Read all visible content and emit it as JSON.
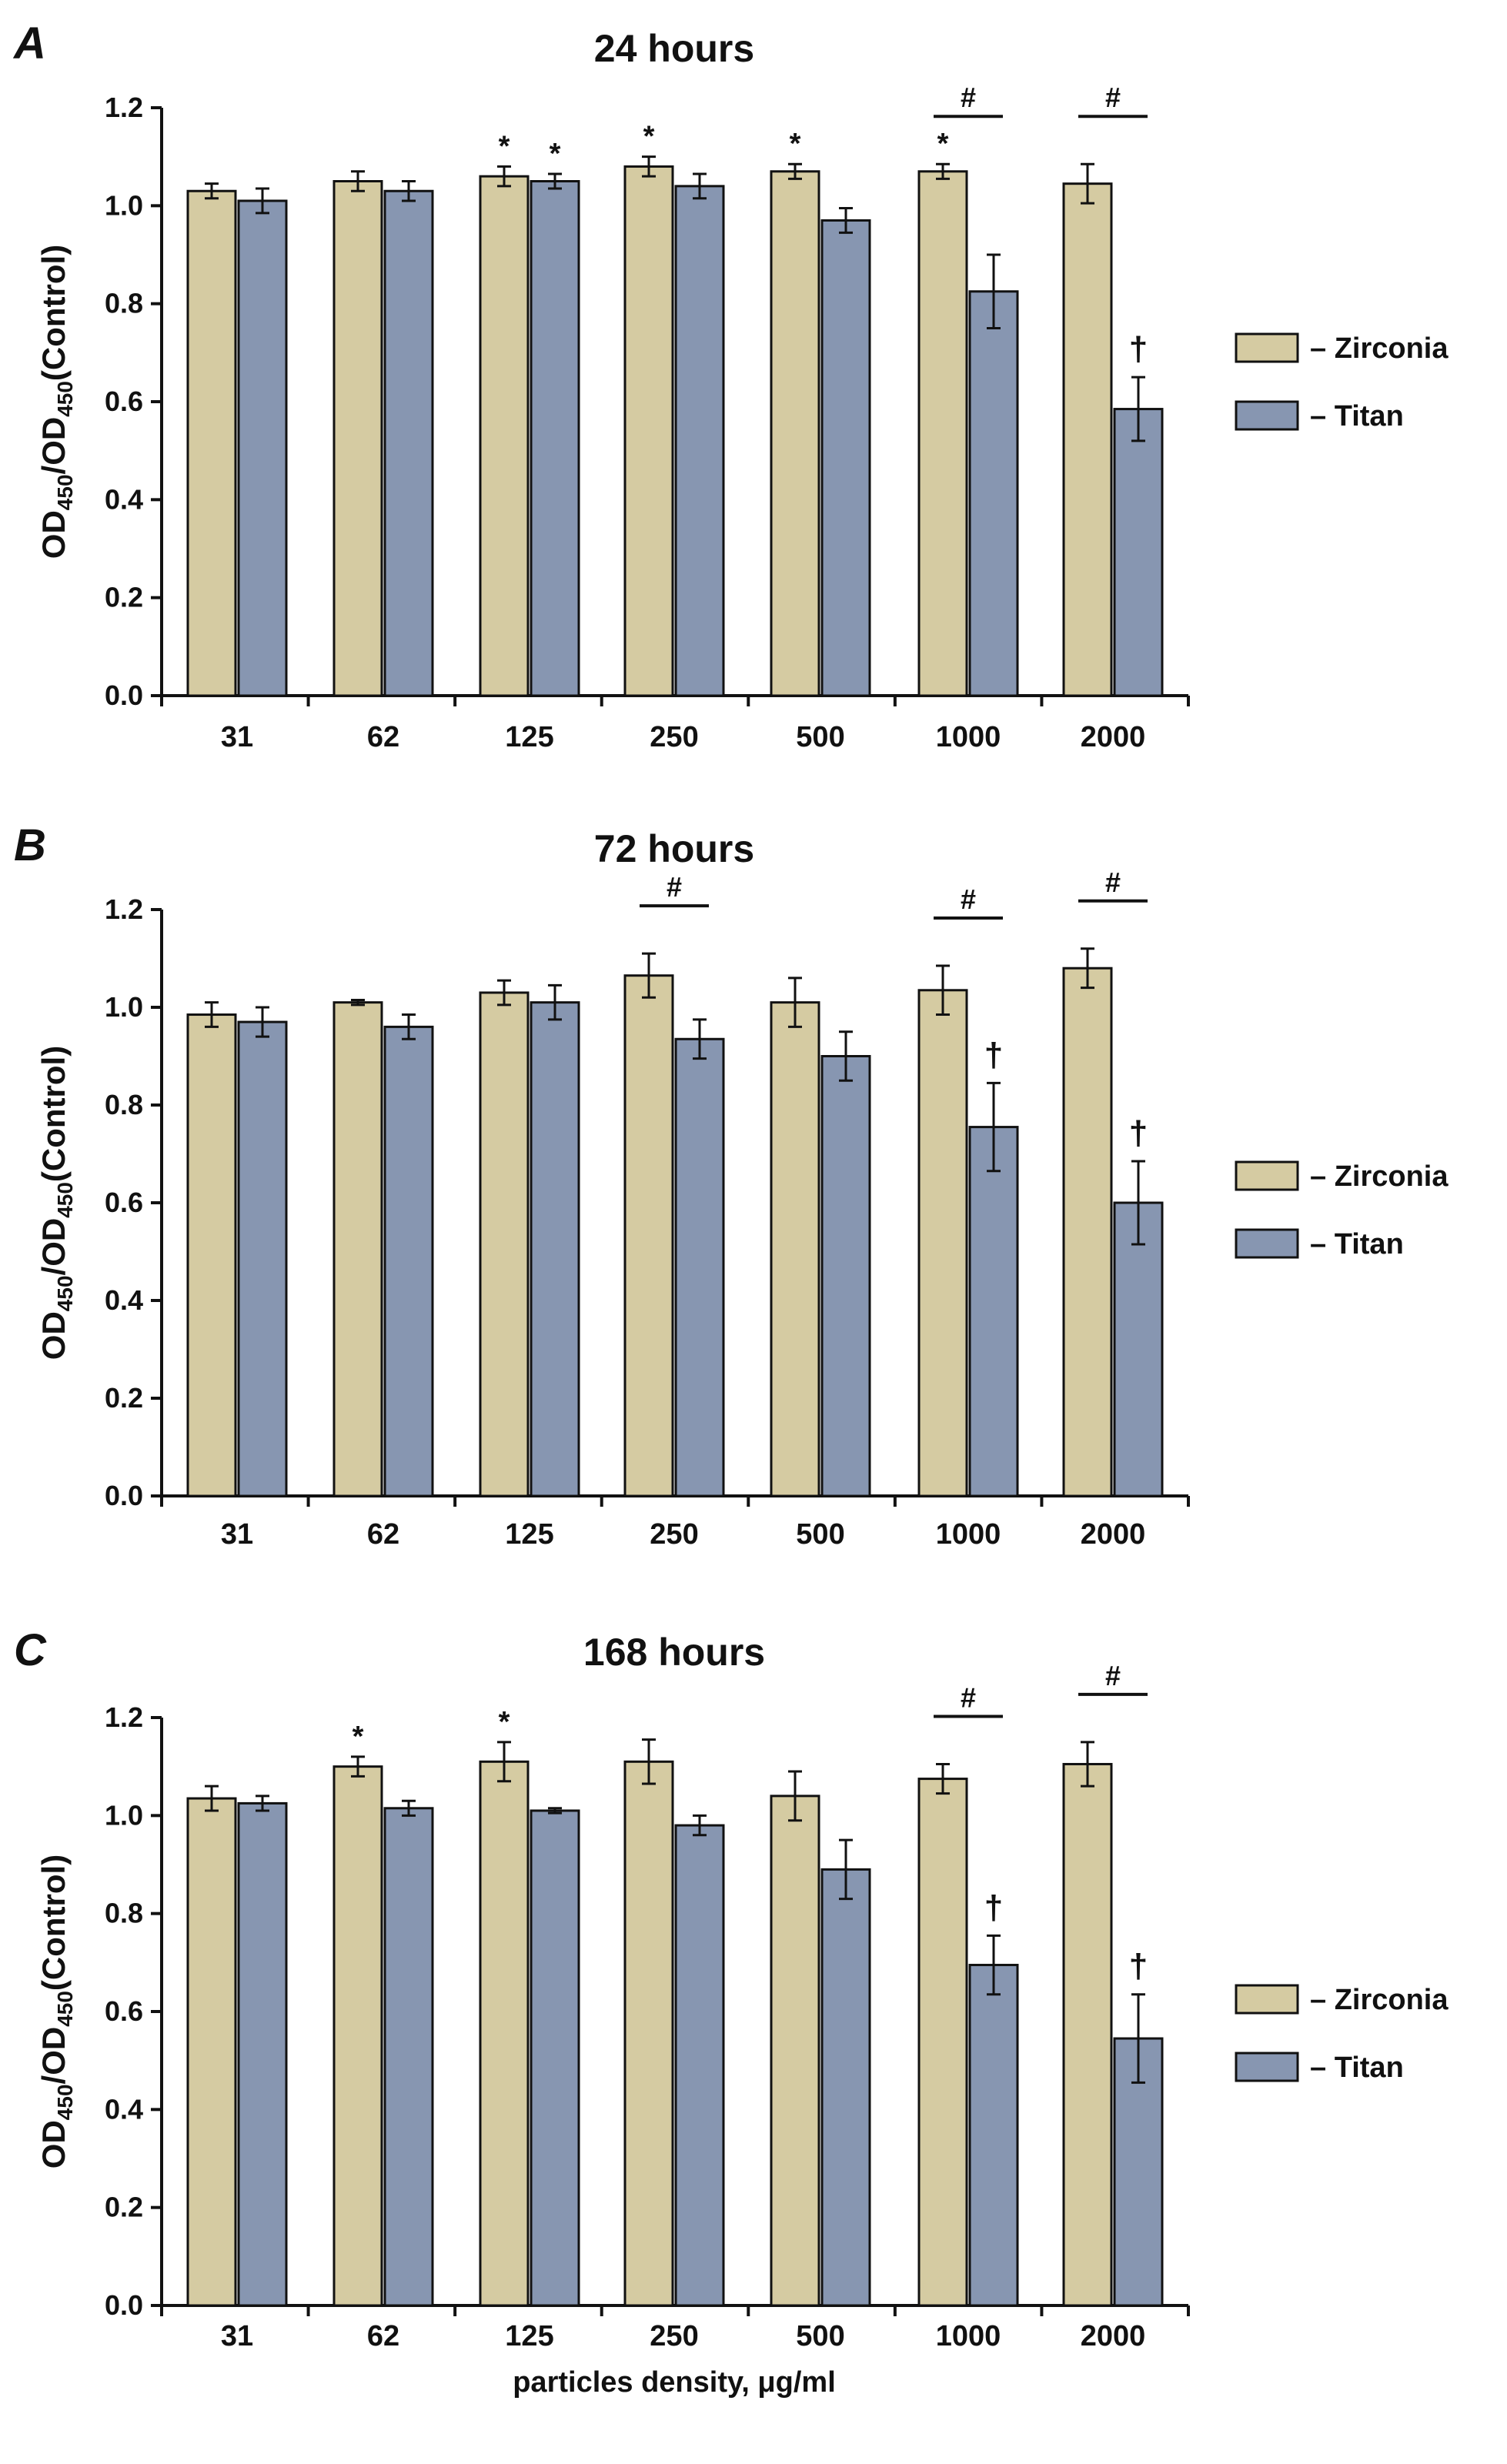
{
  "colors": {
    "zirconia": "#d5cba2",
    "titan": "#8796b1",
    "stroke": "#111111"
  },
  "chart_data": [
    {
      "type": "bar",
      "panel_label": "A",
      "title": "24 hours",
      "xlabel": "",
      "ylabel_main": "OD",
      "ylabel_sub": "450",
      "ylabel_slash": "/OD",
      "ylabel_sub2": "450",
      "ylabel_tail": "(Control)",
      "ylim": [
        0,
        1.2
      ],
      "yticks": [
        "0.0",
        "0.2",
        "0.4",
        "0.6",
        "0.8",
        "1.0",
        "1.2"
      ],
      "categories": [
        "31",
        "62",
        "125",
        "250",
        "500",
        "1000",
        "2000"
      ],
      "series": [
        {
          "name": "Zirconia",
          "legend": "– Zirconia",
          "values": [
            1.03,
            1.05,
            1.06,
            1.08,
            1.07,
            1.07,
            1.045
          ],
          "errors": [
            0.015,
            0.02,
            0.02,
            0.02,
            0.015,
            0.015,
            0.04
          ]
        },
        {
          "name": "Titan",
          "legend": "– Titan",
          "values": [
            1.01,
            1.03,
            1.05,
            1.04,
            0.97,
            0.825,
            0.585
          ],
          "errors": [
            0.025,
            0.02,
            0.015,
            0.025,
            0.025,
            0.075,
            0.065
          ]
        }
      ],
      "annotations": [
        {
          "text": "*",
          "series": 0,
          "index": 2
        },
        {
          "text": "*",
          "series": 1,
          "index": 2
        },
        {
          "text": "*",
          "series": 0,
          "index": 3
        },
        {
          "text": "*",
          "series": 0,
          "index": 4
        },
        {
          "text": "*",
          "series": 0,
          "index": 5
        },
        {
          "text": "†",
          "series": 1,
          "index": 6
        }
      ],
      "brackets": [
        {
          "text": "#",
          "index": 5
        },
        {
          "text": "#",
          "index": 6
        }
      ]
    },
    {
      "type": "bar",
      "panel_label": "B",
      "title": "72 hours",
      "xlabel": "",
      "ylabel_main": "OD",
      "ylabel_sub": "450",
      "ylabel_slash": "/OD",
      "ylabel_sub2": "450",
      "ylabel_tail": "(Control)",
      "ylim": [
        0,
        1.2
      ],
      "yticks": [
        "0.0",
        "0.2",
        "0.4",
        "0.6",
        "0.8",
        "1.0",
        "1.2"
      ],
      "categories": [
        "31",
        "62",
        "125",
        "250",
        "500",
        "1000",
        "2000"
      ],
      "series": [
        {
          "name": "Zirconia",
          "legend": "– Zirconia",
          "values": [
            0.985,
            1.01,
            1.03,
            1.065,
            1.01,
            1.035,
            1.08
          ],
          "errors": [
            0.025,
            0.005,
            0.025,
            0.045,
            0.05,
            0.05,
            0.04
          ]
        },
        {
          "name": "Titan",
          "legend": "– Titan",
          "values": [
            0.97,
            0.96,
            1.01,
            0.935,
            0.9,
            0.755,
            0.6
          ],
          "errors": [
            0.03,
            0.025,
            0.035,
            0.04,
            0.05,
            0.09,
            0.085
          ]
        }
      ],
      "annotations": [
        {
          "text": "†",
          "series": 1,
          "index": 5
        },
        {
          "text": "†",
          "series": 1,
          "index": 6
        }
      ],
      "brackets": [
        {
          "text": "#",
          "index": 3
        },
        {
          "text": "#",
          "index": 5
        },
        {
          "text": "#",
          "index": 6
        }
      ]
    },
    {
      "type": "bar",
      "panel_label": "C",
      "title": "168 hours",
      "xlabel": "particles density, μg/ml",
      "ylabel_main": "OD",
      "ylabel_sub": "450",
      "ylabel_slash": "/OD",
      "ylabel_sub2": "450",
      "ylabel_tail": "(Control)",
      "ylim": [
        0,
        1.2
      ],
      "yticks": [
        "0.0",
        "0.2",
        "0.4",
        "0.6",
        "0.8",
        "1.0",
        "1.2"
      ],
      "categories": [
        "31",
        "62",
        "125",
        "250",
        "500",
        "1000",
        "2000"
      ],
      "series": [
        {
          "name": "Zirconia",
          "legend": "– Zirconia",
          "values": [
            1.035,
            1.1,
            1.11,
            1.11,
            1.04,
            1.075,
            1.105
          ],
          "errors": [
            0.025,
            0.02,
            0.04,
            0.045,
            0.05,
            0.03,
            0.045
          ]
        },
        {
          "name": "Titan",
          "legend": "– Titan",
          "values": [
            1.025,
            1.015,
            1.01,
            0.98,
            0.89,
            0.695,
            0.545
          ],
          "errors": [
            0.015,
            0.015,
            0.005,
            0.02,
            0.06,
            0.06,
            0.09
          ]
        }
      ],
      "annotations": [
        {
          "text": "*",
          "series": 0,
          "index": 1
        },
        {
          "text": "*",
          "series": 0,
          "index": 2
        },
        {
          "text": "†",
          "series": 1,
          "index": 5
        },
        {
          "text": "†",
          "series": 1,
          "index": 6
        }
      ],
      "brackets": [
        {
          "text": "#",
          "index": 5
        },
        {
          "text": "#",
          "index": 6
        }
      ]
    }
  ]
}
